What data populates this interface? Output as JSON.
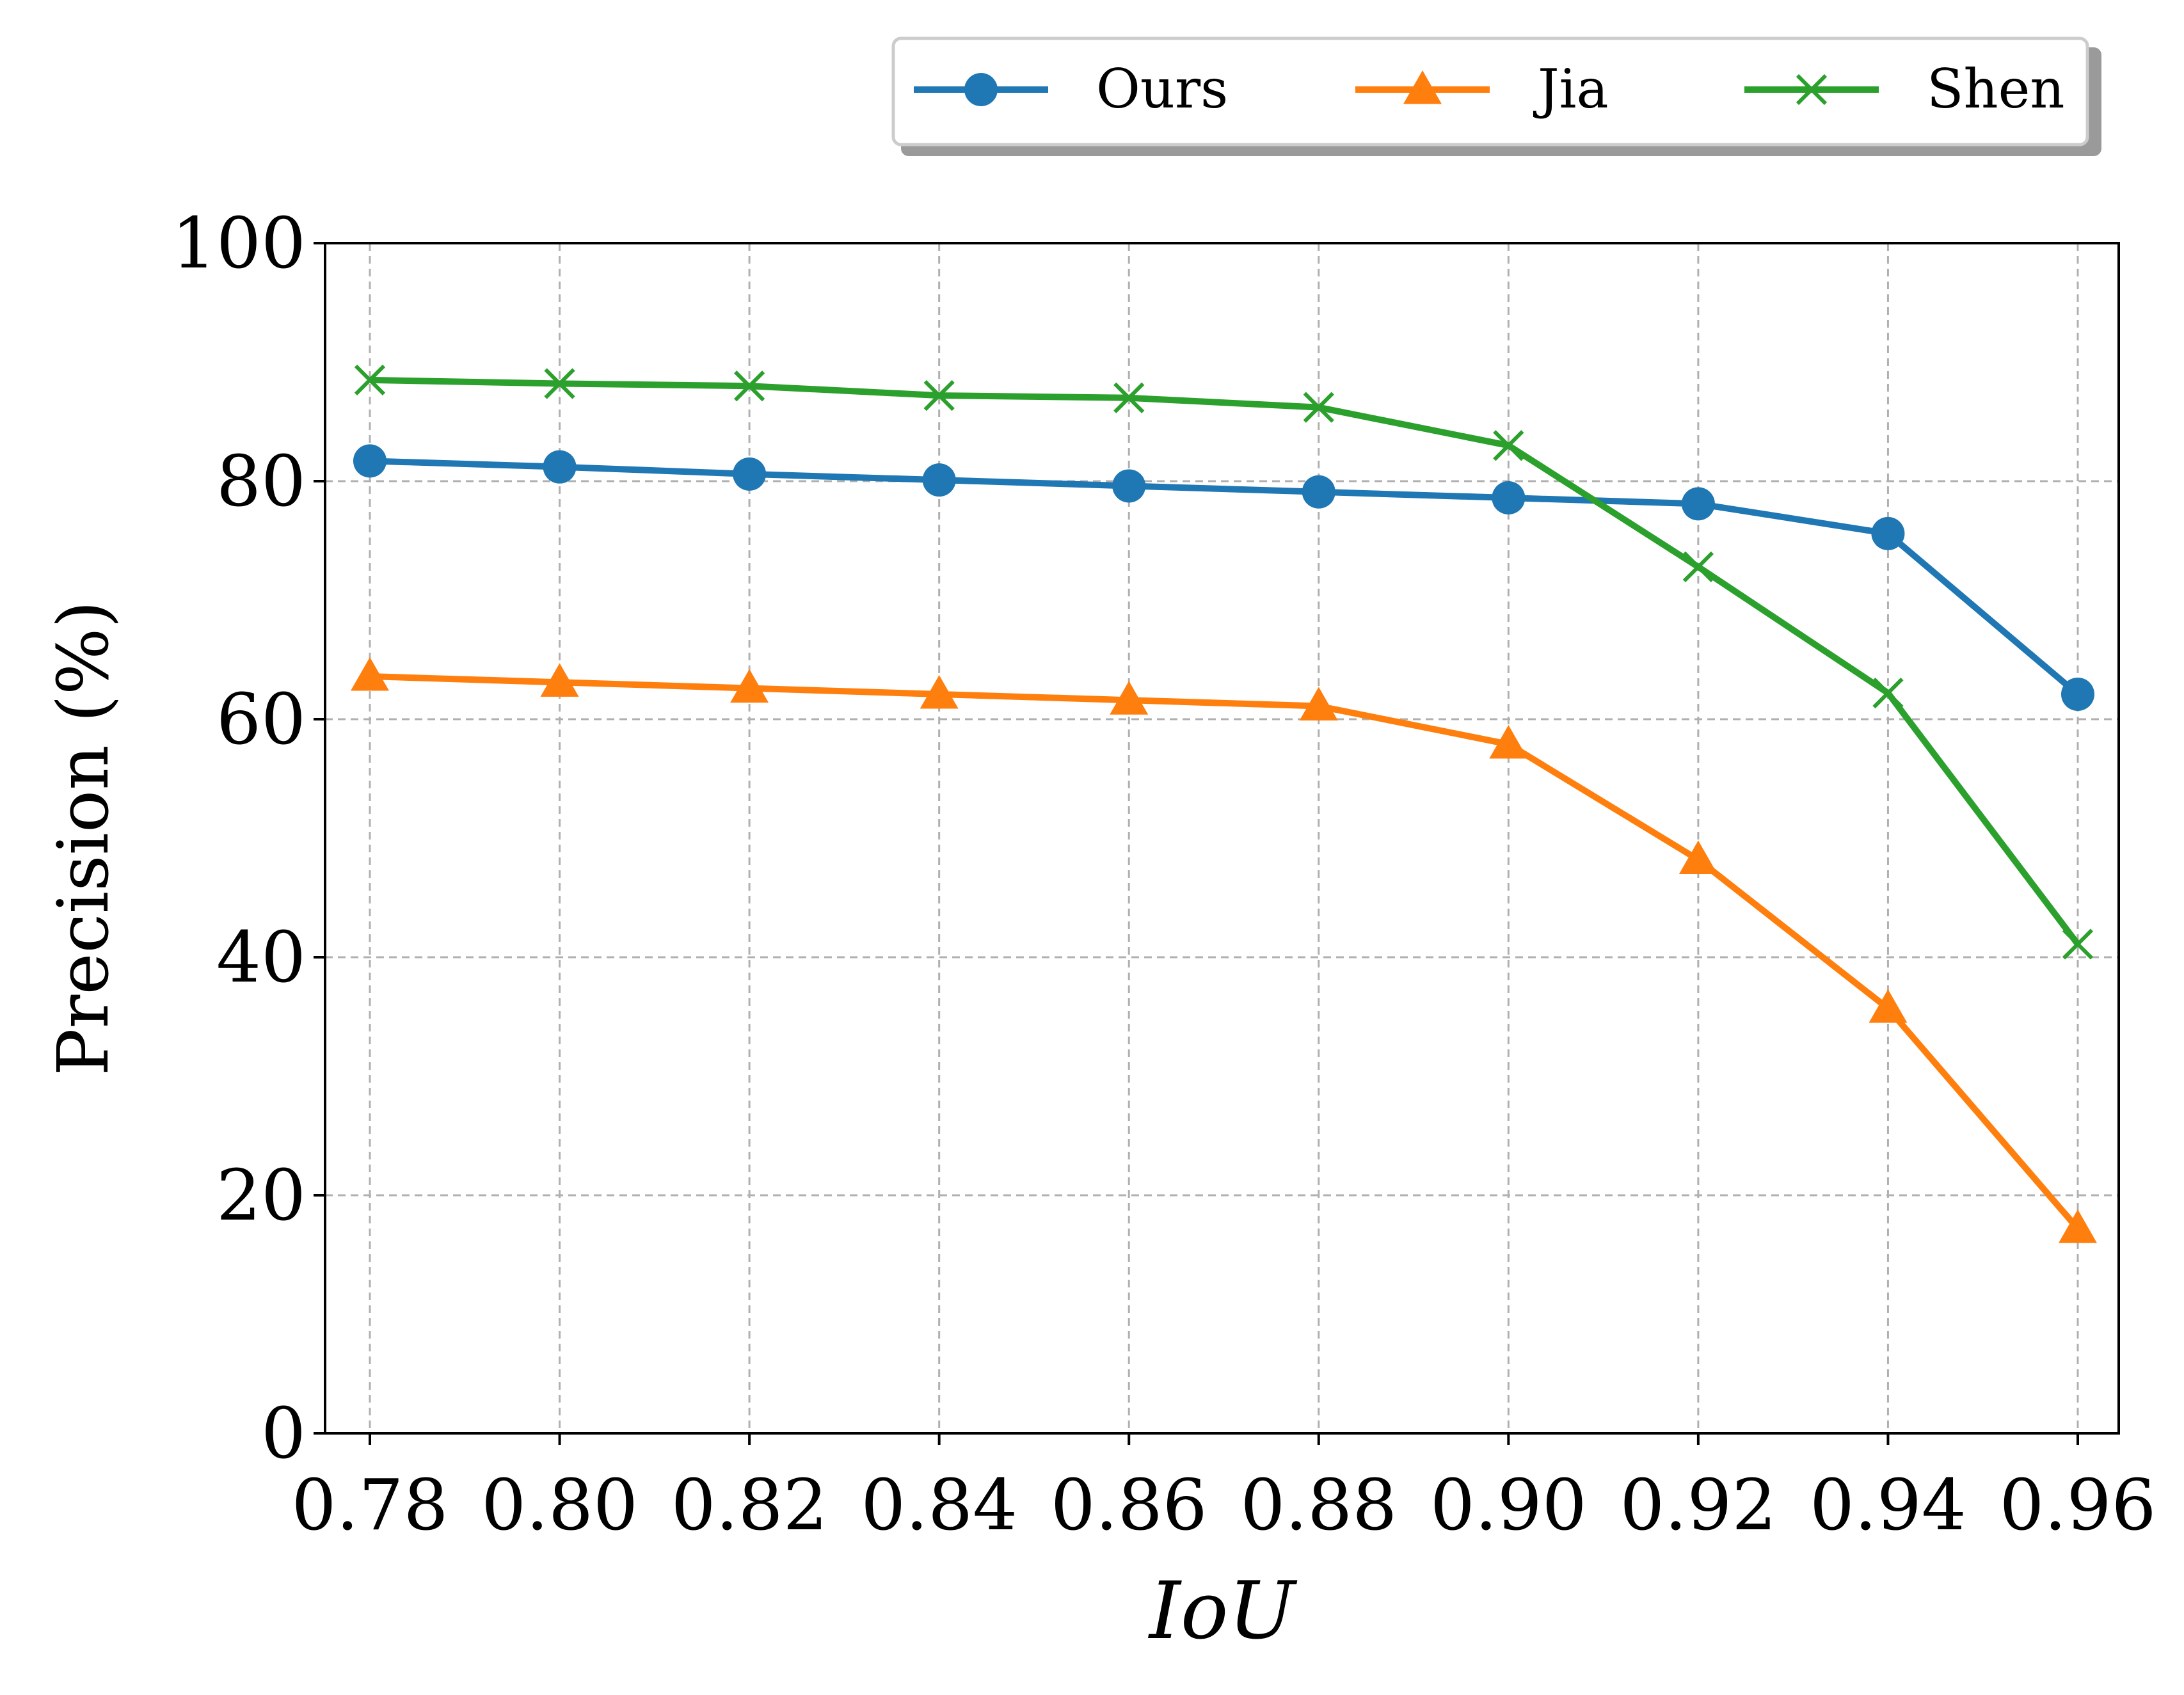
{
  "chart_data": {
    "type": "line",
    "xlabel": "IoU",
    "ylabel": "Precision (%)",
    "x": [
      0.78,
      0.8,
      0.82,
      0.84,
      0.86,
      0.88,
      0.9,
      0.92,
      0.94,
      0.96
    ],
    "x_tick_labels": [
      "0.78",
      "0.80",
      "0.82",
      "0.84",
      "0.86",
      "0.88",
      "0.90",
      "0.92",
      "0.94",
      "0.96"
    ],
    "y_ticks": [
      0,
      20,
      40,
      60,
      80,
      100
    ],
    "ylim": [
      0,
      100
    ],
    "grid": true,
    "legend_placement": "top-right, above plot",
    "series": [
      {
        "name": "Ours",
        "marker": "circle",
        "color": "#1f77b4",
        "values": [
          81.7,
          81.2,
          80.6,
          80.1,
          79.6,
          79.1,
          78.6,
          78.1,
          75.6,
          62.1
        ]
      },
      {
        "name": "Jia",
        "marker": "triangle",
        "color": "#ff7f0e",
        "values": [
          63.6,
          63.1,
          62.6,
          62.1,
          61.6,
          61.1,
          57.9,
          48.2,
          35.7,
          17.2
        ]
      },
      {
        "name": "Shen",
        "marker": "x",
        "color": "#2ca02c",
        "values": [
          88.5,
          88.2,
          88.0,
          87.2,
          87.0,
          86.2,
          83.0,
          72.8,
          62.2,
          41.1
        ]
      }
    ]
  }
}
